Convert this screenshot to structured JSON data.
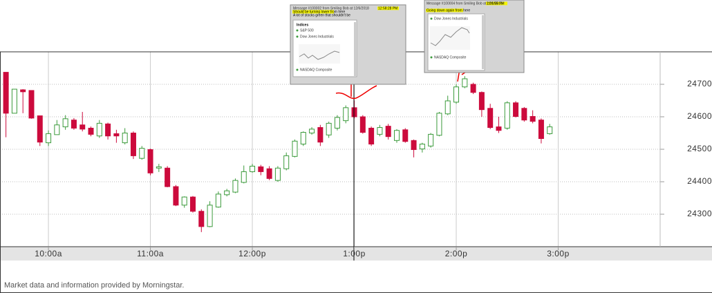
{
  "chart_data": {
    "type": "candlestick",
    "x": [
      575,
      580,
      585,
      590,
      595,
      600,
      605,
      610,
      615,
      620,
      625,
      630,
      635,
      640,
      645,
      650,
      655,
      660,
      665,
      670,
      675,
      680,
      685,
      690,
      695,
      700,
      705,
      710,
      715,
      720,
      725,
      730,
      735,
      740,
      745,
      750,
      755,
      760,
      765,
      770,
      775,
      780,
      785,
      790,
      795,
      800,
      805,
      810,
      815,
      820,
      825,
      830,
      835,
      840,
      845,
      850,
      855,
      860,
      865,
      870,
      875,
      880,
      885,
      890,
      895
    ],
    "open": [
      24737,
      24611,
      24683,
      24681,
      24603,
      24520,
      24545,
      24569,
      24590,
      24575,
      24565,
      24541,
      24578,
      24548,
      24520,
      24550,
      24472,
      24499,
      24442,
      24442,
      24385,
      24328,
      24353,
      24309,
      24262,
      24322,
      24360,
      24368,
      24398,
      24431,
      24446,
      24440,
      24404,
      24440,
      24478,
      24516,
      24550,
      24567,
      24544,
      24565,
      24588,
      24628,
      24600,
      24565,
      24546,
      24571,
      24527,
      24560,
      24527,
      24501,
      24510,
      24543,
      24609,
      24645,
      24692,
      24700,
      24675,
      24626,
      24569,
      24565,
      24643,
      24626,
      24601,
      24590,
      24548
    ],
    "high": [
      24737,
      24685,
      24685,
      24681,
      24603,
      24558,
      24590,
      24605,
      24596,
      24615,
      24570,
      24590,
      24582,
      24560,
      24565,
      24555,
      24510,
      24502,
      24455,
      24448,
      24390,
      24355,
      24356,
      24315,
      24340,
      24370,
      24378,
      24410,
      24450,
      24455,
      24452,
      24448,
      24448,
      24490,
      24530,
      24555,
      24568,
      24575,
      24585,
      24605,
      24635,
      24650,
      24605,
      24570,
      24575,
      24578,
      24562,
      24565,
      24530,
      24520,
      24550,
      24615,
      24665,
      24700,
      24725,
      24705,
      24678,
      24640,
      24600,
      24648,
      24648,
      24630,
      24620,
      24595,
      24578
    ],
    "low": [
      24537,
      24611,
      24611,
      24594,
      24510,
      24510,
      24545,
      24560,
      24560,
      24555,
      24540,
      24535,
      24530,
      24520,
      24515,
      24470,
      24468,
      24420,
      24430,
      24383,
      24325,
      24320,
      24305,
      24245,
      24260,
      24320,
      24355,
      24365,
      24395,
      24428,
      24420,
      24405,
      24400,
      24435,
      24475,
      24510,
      24545,
      24510,
      24535,
      24558,
      24580,
      24595,
      24548,
      24510,
      24540,
      24530,
      24520,
      24520,
      24475,
      24490,
      24505,
      24540,
      24605,
      24640,
      24688,
      24670,
      24600,
      24562,
      24550,
      24560,
      24598,
      24585,
      24580,
      24518,
      24545
    ],
    "close": [
      24611,
      24685,
      24677,
      24596,
      24522,
      24548,
      24575,
      24594,
      24565,
      24562,
      24546,
      24580,
      24541,
      24541,
      24550,
      24480,
      24503,
      24427,
      24446,
      24385,
      24328,
      24353,
      24309,
      24262,
      24328,
      24362,
      24372,
      24404,
      24431,
      24448,
      24431,
      24410,
      24442,
      24480,
      24525,
      24552,
      24562,
      24522,
      24580,
      24598,
      24628,
      24600,
      24552,
      24516,
      24567,
      24539,
      24558,
      24524,
      24499,
      24516,
      24546,
      24611,
      24649,
      24692,
      24717,
      24675,
      24622,
      24567,
      24558,
      24643,
      24601,
      24590,
      24586,
      24533,
      24569
    ],
    "up_color": "#3a9a3a",
    "down_color": "#cc0a3c",
    "xlim": [
      571.5,
      960
    ],
    "xticks": [
      {
        "value": 600,
        "label": "10:00a"
      },
      {
        "value": 660,
        "label": "11:00a"
      },
      {
        "value": 720,
        "label": "12:00p"
      },
      {
        "value": 780,
        "label": "1:00p"
      },
      {
        "value": 840,
        "label": "2:00p"
      },
      {
        "value": 900,
        "label": "3:00p"
      }
    ],
    "ylim": [
      24200,
      24800
    ],
    "yticks": [
      24300,
      24400,
      24500,
      24600,
      24700
    ],
    "grid": true
  },
  "footer": "Market data and information provided by Morningstar.",
  "popups": [
    {
      "header": "Message #100002 from Smiling Bob at 12/6/2018",
      "time": "12:58:28 PM",
      "lines": [
        "Should be turning lower from here",
        "A lot of stocks green that shouldn't be"
      ],
      "widget_title": "Indices",
      "items": [
        "S&P 500",
        "Dow Jones Industrials",
        "NASDAQ Composite"
      ]
    },
    {
      "header": "Message #100004 from Smiling Bob at 12/6/2018",
      "time": "2:01:55 PM",
      "lines": [
        "Going down again from here"
      ],
      "items": [
        "Dow Jones Industrials",
        "NASDAQ Composite"
      ]
    }
  ]
}
